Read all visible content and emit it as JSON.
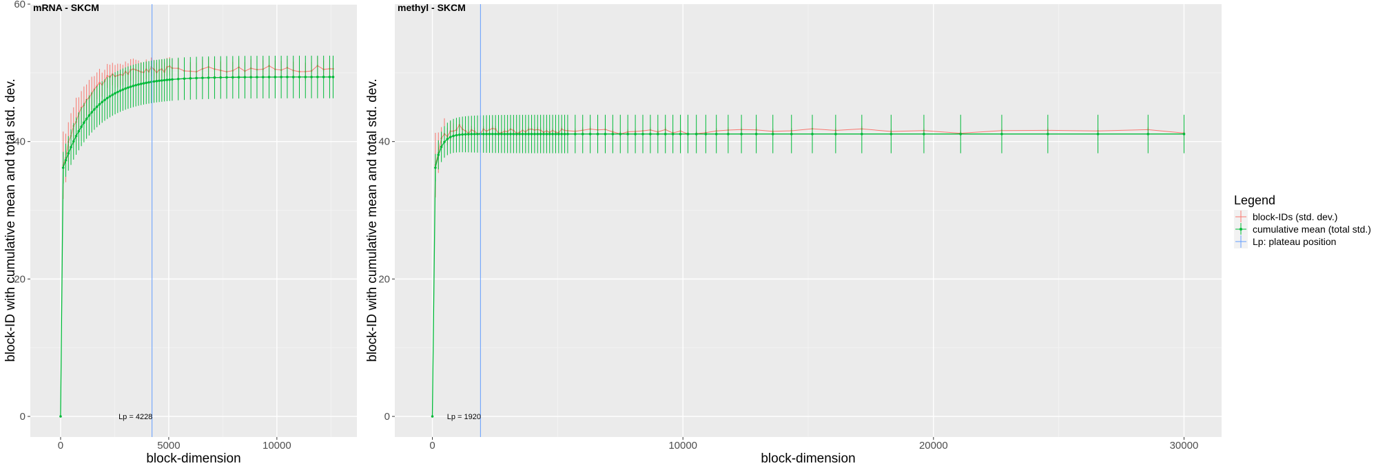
{
  "legend": {
    "title": "Legend",
    "items": [
      {
        "label": "block-IDs (std. dev.)",
        "color": "#F8766D"
      },
      {
        "label": "cumulative mean (total std.)",
        "color": "#00BA38"
      },
      {
        "label": "Lp: plateau position",
        "color": "#619CFF"
      }
    ]
  },
  "chart_data": [
    {
      "type": "line",
      "title": "mRNA - SKCM",
      "xlabel": "block-dimension",
      "ylabel": "block-ID with cumulative mean and total std. dev.",
      "xlim": [
        -1400,
        13700
      ],
      "ylim": [
        -3,
        60
      ],
      "xticks": [
        0,
        5000,
        10000
      ],
      "xtick_labels": [
        "0",
        "5000",
        "10000"
      ],
      "yticks": [
        0,
        20,
        40,
        60
      ],
      "ytick_labels": [
        "0",
        "20",
        "40",
        "60"
      ],
      "grid": true,
      "lp": {
        "x": 4228,
        "label": "Lp = 4228"
      },
      "x_range": [
        0,
        12600
      ],
      "cum": {
        "start": 36.2,
        "plateau": 49.4,
        "tau": 1400,
        "sd_start": 2.3,
        "sd_end": 3.1
      },
      "block": {
        "start": 36.2,
        "plateau": 50.6,
        "tau": 900,
        "sd_end": 1.3,
        "sd_first": 4.0
      },
      "series": [
        {
          "name": "block-IDs (std. dev.)",
          "points": [
            [
              0,
              0
            ],
            [
              120,
              36.2
            ],
            [
              1000,
              47.8
            ],
            [
              4228,
              50.1
            ],
            [
              8000,
              50.3
            ],
            [
              12600,
              50.8
            ]
          ]
        },
        {
          "name": "cumulative mean (total std.)",
          "points": [
            [
              0,
              0
            ],
            [
              120,
              36.2
            ],
            [
              1000,
              43.0
            ],
            [
              4228,
              48.3
            ],
            [
              8000,
              49.1
            ],
            [
              12600,
              49.4
            ]
          ]
        }
      ]
    },
    {
      "type": "line",
      "title": "methyl - SKCM",
      "xlabel": "block-dimension",
      "ylabel": "block-ID with cumulative mean and total std. dev.",
      "xlim": [
        -1500,
        31500
      ],
      "ylim": [
        -3,
        60
      ],
      "xticks": [
        0,
        10000,
        20000,
        30000
      ],
      "xtick_labels": [
        "0",
        "10000",
        "20000",
        "30000"
      ],
      "yticks": [
        0,
        20,
        40
      ],
      "ytick_labels": [
        "0",
        "20",
        "40"
      ],
      "grid": true,
      "lp": {
        "x": 1920,
        "label": "Lp = 1920"
      },
      "x_range": [
        0,
        30000
      ],
      "cum": {
        "start": 36.2,
        "plateau": 41.1,
        "tau": 250,
        "sd_start": 2.0,
        "sd_end": 2.8
      },
      "block": {
        "start": 36.3,
        "plateau": 41.5,
        "tau": 200,
        "sd_end": 0.4,
        "sd_first": 3.5
      },
      "series": [
        {
          "name": "block-IDs (std. dev.)",
          "points": [
            [
              0,
              0
            ],
            [
              120,
              36.3
            ],
            [
              700,
              42.0
            ],
            [
              1920,
              41.5
            ],
            [
              10000,
              41.4
            ],
            [
              30000,
              41.4
            ]
          ]
        },
        {
          "name": "cumulative mean (total std.)",
          "points": [
            [
              0,
              0
            ],
            [
              120,
              36.2
            ],
            [
              700,
              40.2
            ],
            [
              1920,
              40.9
            ],
            [
              10000,
              41.1
            ],
            [
              30000,
              41.2
            ]
          ]
        }
      ]
    }
  ]
}
